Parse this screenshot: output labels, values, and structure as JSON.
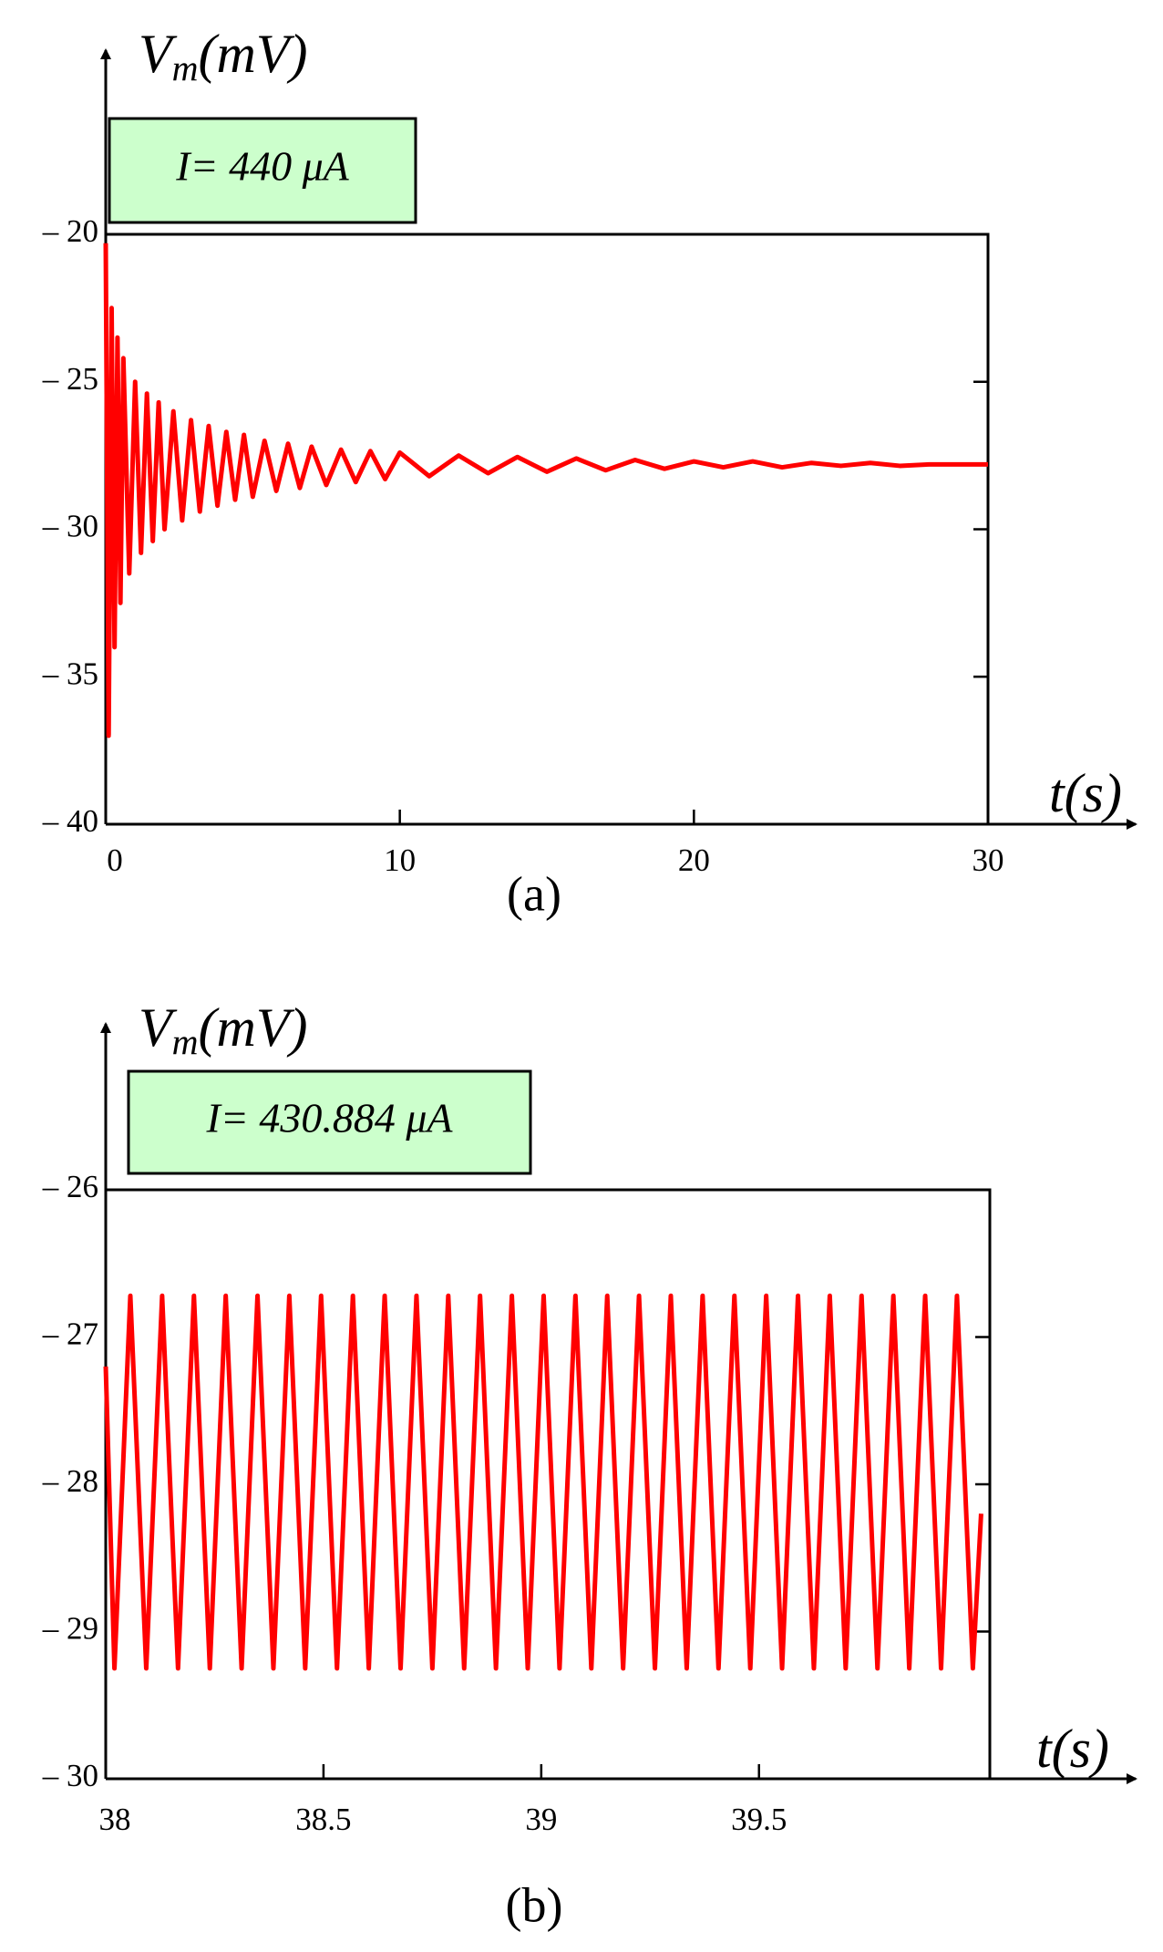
{
  "chart_data": [
    {
      "type": "line",
      "color": "#ff0000",
      "y_label": [
        "V",
        "m",
        "(mV)"
      ],
      "x_label": "t(s)",
      "annotation": "I= 440 μA",
      "caption": "(a)",
      "xlim": [
        0,
        30
      ],
      "xticks": [
        0,
        10,
        20,
        30
      ],
      "ylim": [
        -40,
        -20
      ],
      "yticks": [
        {
          "value": -20,
          "label": "– 20"
        },
        {
          "value": -25,
          "label": "– 25"
        },
        {
          "value": -30,
          "label": "– 30"
        },
        {
          "value": -35,
          "label": "– 35"
        },
        {
          "value": -40,
          "label": "– 40"
        }
      ],
      "x": [
        0,
        0.1,
        0.2,
        0.3,
        0.4,
        0.5,
        0.6,
        0.8,
        1.0,
        1.2,
        1.4,
        1.6,
        1.8,
        2.0,
        2.3,
        2.6,
        2.9,
        3.2,
        3.5,
        3.8,
        4.1,
        4.4,
        4.7,
        5.0,
        5.4,
        5.8,
        6.2,
        6.6,
        7.0,
        7.5,
        8,
        8.5,
        9,
        9.5,
        10,
        11,
        12,
        13,
        14,
        15,
        16,
        17,
        18,
        19,
        20,
        21,
        22,
        23,
        24,
        25,
        26,
        27,
        28,
        29,
        30
      ],
      "values": [
        -20.3,
        -37.0,
        -22.5,
        -34.0,
        -23.5,
        -32.5,
        -24.2,
        -31.5,
        -25.0,
        -30.8,
        -25.4,
        -30.4,
        -25.7,
        -30.0,
        -26.0,
        -29.7,
        -26.3,
        -29.4,
        -26.5,
        -29.2,
        -26.7,
        -29.0,
        -26.8,
        -28.9,
        -27.0,
        -28.7,
        -27.1,
        -28.6,
        -27.2,
        -28.5,
        -27.3,
        -28.4,
        -27.35,
        -28.3,
        -27.4,
        -28.2,
        -27.5,
        -28.1,
        -27.55,
        -28.05,
        -27.6,
        -28.0,
        -27.65,
        -27.95,
        -27.7,
        -27.9,
        -27.7,
        -27.9,
        -27.75,
        -27.85,
        -27.75,
        -27.85,
        -27.8,
        -27.8,
        -27.8
      ]
    },
    {
      "type": "line",
      "color": "#ff0000",
      "y_label": [
        "V",
        "m",
        "(mV)"
      ],
      "x_label": "t(s)",
      "annotation": "I= 430.884 μA",
      "caption": "(b)",
      "xlim": [
        38,
        40.03
      ],
      "xticks": [
        38,
        38.5,
        39,
        39.5
      ],
      "ylim": [
        -30,
        -26
      ],
      "yticks": [
        {
          "value": -26,
          "label": "– 26"
        },
        {
          "value": -27,
          "label": "– 27"
        },
        {
          "value": -28,
          "label": "– 28"
        },
        {
          "value": -29,
          "label": "– 29"
        },
        {
          "value": -30,
          "label": "– 30"
        }
      ],
      "x": [
        38,
        38.02,
        38.0565,
        38.093,
        38.1295,
        38.166,
        38.2025,
        38.239,
        38.2755,
        38.312,
        38.3485,
        38.385,
        38.4215,
        38.458,
        38.4945,
        38.531,
        38.5675,
        38.604,
        38.6405,
        38.677,
        38.7135,
        38.75,
        38.7865,
        38.823,
        38.8595,
        38.896,
        38.9325,
        38.969,
        39.0055,
        39.042,
        39.0785,
        39.115,
        39.1515,
        39.188,
        39.2245,
        39.261,
        39.2975,
        39.334,
        39.3705,
        39.407,
        39.4435,
        39.48,
        39.5165,
        39.553,
        39.5895,
        39.626,
        39.6625,
        39.699,
        39.7355,
        39.772,
        39.8085,
        39.845,
        39.8815,
        39.918,
        39.9545,
        39.991,
        40.01
      ],
      "values": [
        -27.2,
        -29.25,
        -26.72,
        -29.25,
        -26.72,
        -29.25,
        -26.72,
        -29.25,
        -26.72,
        -29.25,
        -26.72,
        -29.25,
        -26.72,
        -29.25,
        -26.72,
        -29.25,
        -26.72,
        -29.25,
        -26.72,
        -29.25,
        -26.72,
        -29.25,
        -26.72,
        -29.25,
        -26.72,
        -29.25,
        -26.72,
        -29.25,
        -26.72,
        -29.25,
        -26.72,
        -29.25,
        -26.72,
        -29.25,
        -26.72,
        -29.25,
        -26.72,
        -29.25,
        -26.72,
        -29.25,
        -26.72,
        -29.25,
        -26.72,
        -29.25,
        -26.72,
        -29.25,
        -26.72,
        -29.25,
        -26.72,
        -29.25,
        -26.72,
        -29.25,
        -26.72,
        -29.25,
        -26.72,
        -29.25,
        -28.2
      ]
    }
  ]
}
